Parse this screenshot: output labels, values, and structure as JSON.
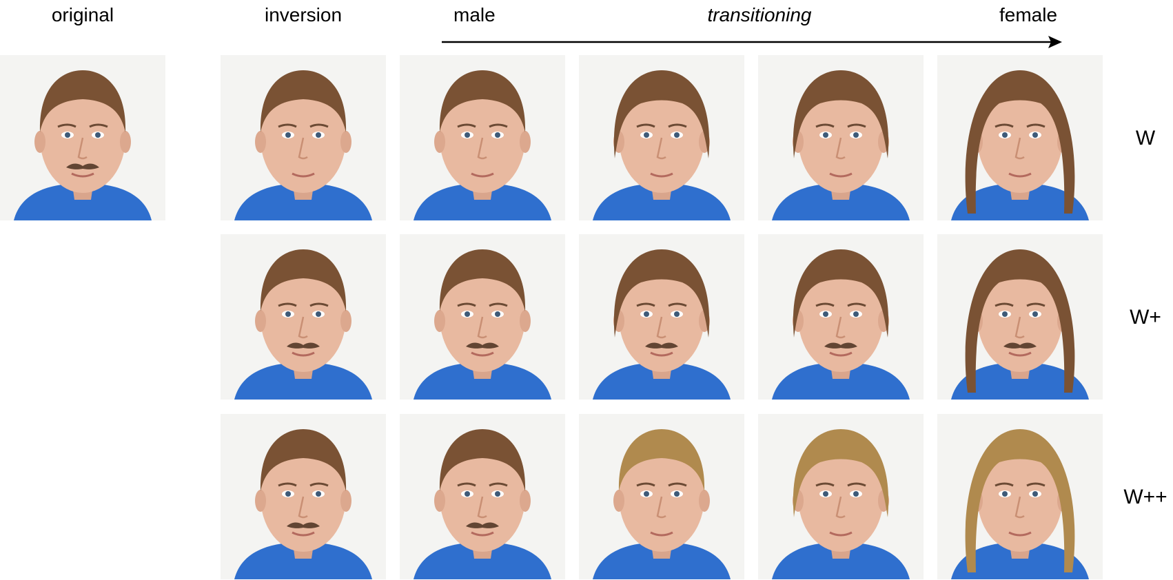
{
  "headers": {
    "original": "original",
    "inversion": "inversion",
    "male": "male",
    "transitioning": "transitioning",
    "female": "female"
  },
  "row_labels": [
    "W",
    "W+",
    "W++"
  ],
  "arrow_icon": "right-arrow-icon",
  "colors": {
    "background": "#ffffff",
    "shirt_blue": "#2f6fce",
    "hair_brown": "#7a5234",
    "hair_blond": "#b08a4e",
    "skin": "#e8b9a0",
    "text": "#000000"
  },
  "tiles": [
    {
      "row": "original",
      "column": "original",
      "hair": "short-brown",
      "mustache": true
    },
    {
      "row": "W",
      "column": "inversion",
      "hair": "short-brown",
      "mustache": false
    },
    {
      "row": "W",
      "column": "male",
      "hair": "short-brown",
      "mustache": false
    },
    {
      "row": "W",
      "column": "transitioning-1",
      "hair": "bob-brown",
      "mustache": false
    },
    {
      "row": "W",
      "column": "transitioning-2",
      "hair": "bob-brown",
      "mustache": false
    },
    {
      "row": "W",
      "column": "female",
      "hair": "shoulder-brown",
      "mustache": false
    },
    {
      "row": "W+",
      "column": "inversion",
      "hair": "short-brown",
      "mustache": true
    },
    {
      "row": "W+",
      "column": "male",
      "hair": "short-brown",
      "mustache": true
    },
    {
      "row": "W+",
      "column": "transitioning-1",
      "hair": "bob-brown",
      "mustache": true
    },
    {
      "row": "W+",
      "column": "transitioning-2",
      "hair": "bob-brown",
      "mustache": true
    },
    {
      "row": "W+",
      "column": "female",
      "hair": "shoulder-brown",
      "mustache": true
    },
    {
      "row": "W++",
      "column": "inversion",
      "hair": "short-brown",
      "mustache": true
    },
    {
      "row": "W++",
      "column": "male",
      "hair": "short-brown",
      "mustache": true
    },
    {
      "row": "W++",
      "column": "transitioning-1",
      "hair": "short-blond",
      "mustache": false
    },
    {
      "row": "W++",
      "column": "transitioning-2",
      "hair": "bob-blond",
      "mustache": false
    },
    {
      "row": "W++",
      "column": "female",
      "hair": "shoulder-blond",
      "mustache": false
    }
  ]
}
